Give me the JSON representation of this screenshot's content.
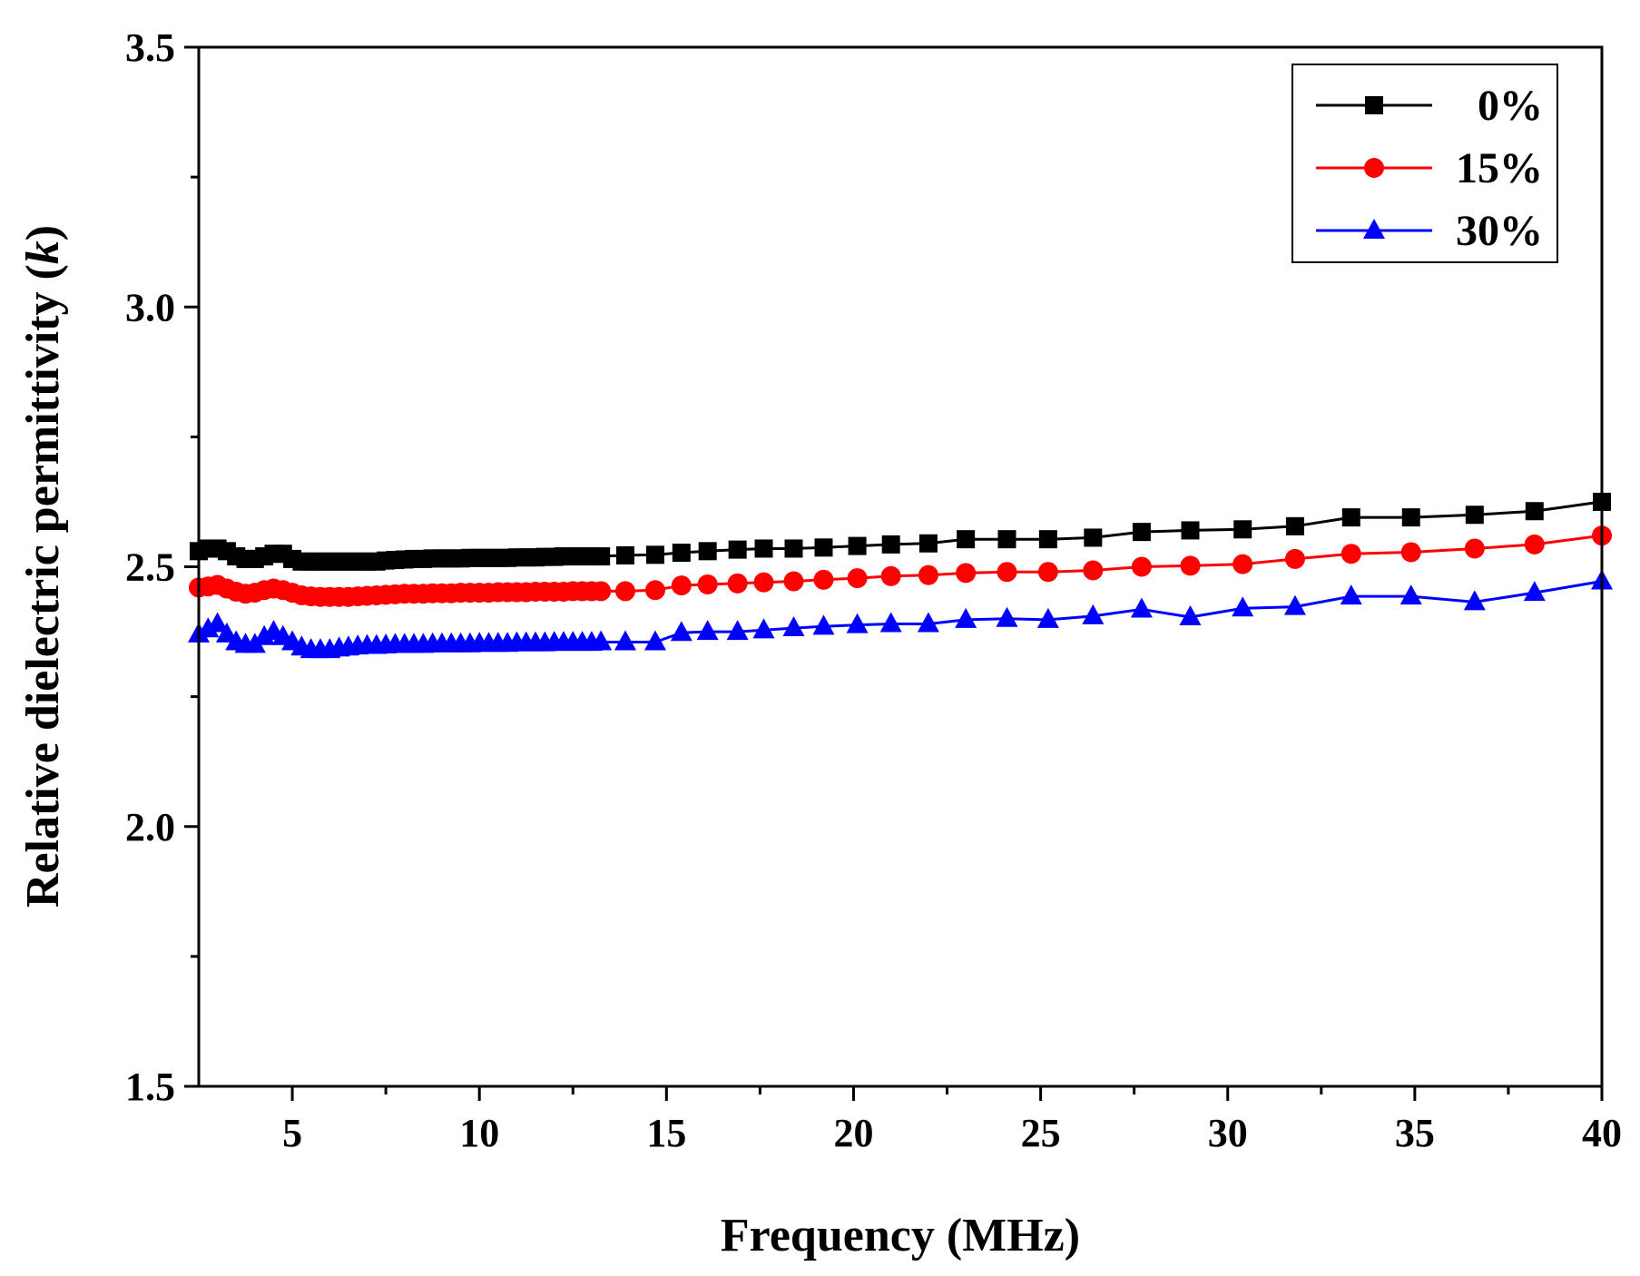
{
  "chart_data": {
    "type": "line",
    "title": "",
    "xlabel": "Frequency (MHz)",
    "ylabel_main": "Relative dielectric permittivity (",
    "ylabel_italic": "k",
    "ylabel_close": ")",
    "xlim": [
      2.5,
      40
    ],
    "ylim": [
      1.5,
      3.5
    ],
    "xticks": [
      5,
      10,
      15,
      20,
      25,
      30,
      35,
      40
    ],
    "xtick_labels": [
      "5",
      "10",
      "15",
      "20",
      "25",
      "30",
      "35",
      "40"
    ],
    "yticks": [
      1.5,
      2.0,
      2.5,
      3.0,
      3.5
    ],
    "ytick_labels": [
      "1.5",
      "2.0",
      "2.5",
      "3.0",
      "3.5"
    ],
    "legend_position": "top-right",
    "series": [
      {
        "name": "0%",
        "color": "#000000",
        "marker": "square",
        "x": [
          2.5,
          2.75,
          3.0,
          3.25,
          3.5,
          3.75,
          4.0,
          4.25,
          4.5,
          4.75,
          5.0,
          5.25,
          5.5,
          5.75,
          6.0,
          6.25,
          6.5,
          6.75,
          7.0,
          7.25,
          7.5,
          7.75,
          8.0,
          8.25,
          8.5,
          8.75,
          9.0,
          9.25,
          9.5,
          9.75,
          10.0,
          10.25,
          10.5,
          10.75,
          11.0,
          11.25,
          11.5,
          11.75,
          12.0,
          12.25,
          12.5,
          12.75,
          13.0,
          13.25,
          13.9,
          14.7,
          15.4,
          16.1,
          16.9,
          17.6,
          18.4,
          19.2,
          20.1,
          21.0,
          22.0,
          23.0,
          24.1,
          25.2,
          26.4,
          27.7,
          29.0,
          30.4,
          31.8,
          33.3,
          34.9,
          36.6,
          38.2,
          40.0
        ],
        "values": [
          2.53,
          2.535,
          2.535,
          2.53,
          2.52,
          2.515,
          2.515,
          2.52,
          2.525,
          2.525,
          2.515,
          2.51,
          2.51,
          2.51,
          2.51,
          2.51,
          2.51,
          2.51,
          2.51,
          2.51,
          2.512,
          2.513,
          2.514,
          2.515,
          2.515,
          2.516,
          2.516,
          2.516,
          2.516,
          2.517,
          2.517,
          2.517,
          2.517,
          2.517,
          2.518,
          2.518,
          2.518,
          2.519,
          2.519,
          2.52,
          2.52,
          2.52,
          2.52,
          2.52,
          2.522,
          2.523,
          2.527,
          2.53,
          2.533,
          2.535,
          2.535,
          2.537,
          2.54,
          2.543,
          2.545,
          2.553,
          2.553,
          2.553,
          2.556,
          2.567,
          2.57,
          2.572,
          2.578,
          2.595,
          2.595,
          2.6,
          2.607,
          2.625
        ]
      },
      {
        "name": "15%",
        "color": "#ff0000",
        "marker": "circle",
        "x": [
          2.5,
          2.75,
          3.0,
          3.25,
          3.5,
          3.75,
          4.0,
          4.25,
          4.5,
          4.75,
          5.0,
          5.25,
          5.5,
          5.75,
          6.0,
          6.25,
          6.5,
          6.75,
          7.0,
          7.25,
          7.5,
          7.75,
          8.0,
          8.25,
          8.5,
          8.75,
          9.0,
          9.25,
          9.5,
          9.75,
          10.0,
          10.25,
          10.5,
          10.75,
          11.0,
          11.25,
          11.5,
          11.75,
          12.0,
          12.25,
          12.5,
          12.75,
          13.0,
          13.25,
          13.9,
          14.7,
          15.4,
          16.1,
          16.9,
          17.6,
          18.4,
          19.2,
          20.1,
          21.0,
          22.0,
          23.0,
          24.1,
          25.2,
          26.4,
          27.7,
          29.0,
          30.4,
          31.8,
          33.3,
          34.9,
          36.6,
          38.2,
          40.0
        ],
        "values": [
          2.46,
          2.462,
          2.465,
          2.458,
          2.452,
          2.448,
          2.45,
          2.455,
          2.458,
          2.455,
          2.45,
          2.445,
          2.443,
          2.442,
          2.442,
          2.442,
          2.442,
          2.443,
          2.444,
          2.445,
          2.446,
          2.447,
          2.448,
          2.448,
          2.448,
          2.449,
          2.449,
          2.449,
          2.45,
          2.45,
          2.45,
          2.45,
          2.451,
          2.451,
          2.451,
          2.451,
          2.452,
          2.452,
          2.452,
          2.452,
          2.453,
          2.453,
          2.453,
          2.453,
          2.453,
          2.455,
          2.464,
          2.466,
          2.468,
          2.47,
          2.472,
          2.475,
          2.478,
          2.482,
          2.484,
          2.488,
          2.49,
          2.49,
          2.493,
          2.5,
          2.502,
          2.505,
          2.515,
          2.525,
          2.528,
          2.535,
          2.543,
          2.56
        ]
      },
      {
        "name": "30%",
        "color": "#0000ff",
        "marker": "triangle",
        "x": [
          2.5,
          2.75,
          3.0,
          3.25,
          3.5,
          3.75,
          4.0,
          4.25,
          4.5,
          4.75,
          5.0,
          5.25,
          5.5,
          5.75,
          6.0,
          6.25,
          6.5,
          6.75,
          7.0,
          7.25,
          7.5,
          7.75,
          8.0,
          8.25,
          8.5,
          8.75,
          9.0,
          9.25,
          9.5,
          9.75,
          10.0,
          10.25,
          10.5,
          10.75,
          11.0,
          11.25,
          11.5,
          11.75,
          12.0,
          12.25,
          12.5,
          12.75,
          13.0,
          13.25,
          13.9,
          14.7,
          15.4,
          16.1,
          16.9,
          17.6,
          18.4,
          19.2,
          20.1,
          21.0,
          22.0,
          23.0,
          24.1,
          25.2,
          26.4,
          27.7,
          29.0,
          30.4,
          31.8,
          33.3,
          34.9,
          36.6,
          38.2,
          40.0
        ],
        "values": [
          2.37,
          2.38,
          2.39,
          2.37,
          2.355,
          2.35,
          2.35,
          2.365,
          2.375,
          2.365,
          2.355,
          2.345,
          2.34,
          2.34,
          2.34,
          2.343,
          2.345,
          2.347,
          2.348,
          2.348,
          2.349,
          2.35,
          2.35,
          2.35,
          2.35,
          2.351,
          2.351,
          2.351,
          2.351,
          2.351,
          2.352,
          2.352,
          2.352,
          2.352,
          2.353,
          2.353,
          2.353,
          2.353,
          2.354,
          2.354,
          2.354,
          2.354,
          2.354,
          2.355,
          2.355,
          2.355,
          2.373,
          2.375,
          2.375,
          2.378,
          2.382,
          2.385,
          2.388,
          2.39,
          2.39,
          2.398,
          2.4,
          2.398,
          2.405,
          2.418,
          2.403,
          2.42,
          2.423,
          2.443,
          2.443,
          2.432,
          2.45,
          2.472
        ]
      }
    ]
  }
}
